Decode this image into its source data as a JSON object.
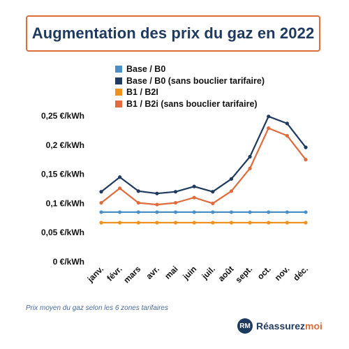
{
  "chart_data": {
    "type": "line",
    "title": "Augmentation des prix du gaz en 2022",
    "categories": [
      "janv.",
      "févr.",
      "mars",
      "avr.",
      "mai",
      "juin",
      "juil.",
      "août",
      "sept.",
      "oct.",
      "nov.",
      "déc."
    ],
    "ylim": [
      0,
      0.25
    ],
    "yticks": [
      {
        "value": 0,
        "label": "0 €/kWh"
      },
      {
        "value": 0.05,
        "label": "0,05 €/kWh"
      },
      {
        "value": 0.1,
        "label": "0,1 €/kWh"
      },
      {
        "value": 0.15,
        "label": "0,15 €/kWh"
      },
      {
        "value": 0.2,
        "label": "0,2 €/kWh"
      },
      {
        "value": 0.25,
        "label": "0,25 €/kWh"
      }
    ],
    "grid": false,
    "legend_position": "top",
    "series": [
      {
        "name": "Base / B0",
        "color": "#4a90c8",
        "values": [
          0.085,
          0.085,
          0.085,
          0.085,
          0.085,
          0.085,
          0.085,
          0.085,
          0.085,
          0.085,
          0.085,
          0.085
        ]
      },
      {
        "name": "Base / B0 (sans bouclier tarifaire)",
        "color": "#1f3a5f",
        "values": [
          0.12,
          0.145,
          0.121,
          0.117,
          0.12,
          0.129,
          0.12,
          0.142,
          0.18,
          0.249,
          0.237,
          0.196
        ]
      },
      {
        "name": "B1 / B2I",
        "color": "#f0901e",
        "values": [
          0.067,
          0.067,
          0.067,
          0.067,
          0.067,
          0.067,
          0.067,
          0.067,
          0.067,
          0.067,
          0.067,
          0.067
        ]
      },
      {
        "name": "B1 / B2i (sans bouclier tarifaire)",
        "color": "#e06c3c",
        "values": [
          0.101,
          0.126,
          0.101,
          0.098,
          0.101,
          0.11,
          0.1,
          0.121,
          0.16,
          0.229,
          0.216,
          0.175
        ]
      }
    ]
  },
  "source_note": "Prix moyen du gaz selon les 6 zones tarifaires",
  "logo": {
    "mark": "RM",
    "text_main": "Réassurez",
    "text_accent": "moi"
  }
}
